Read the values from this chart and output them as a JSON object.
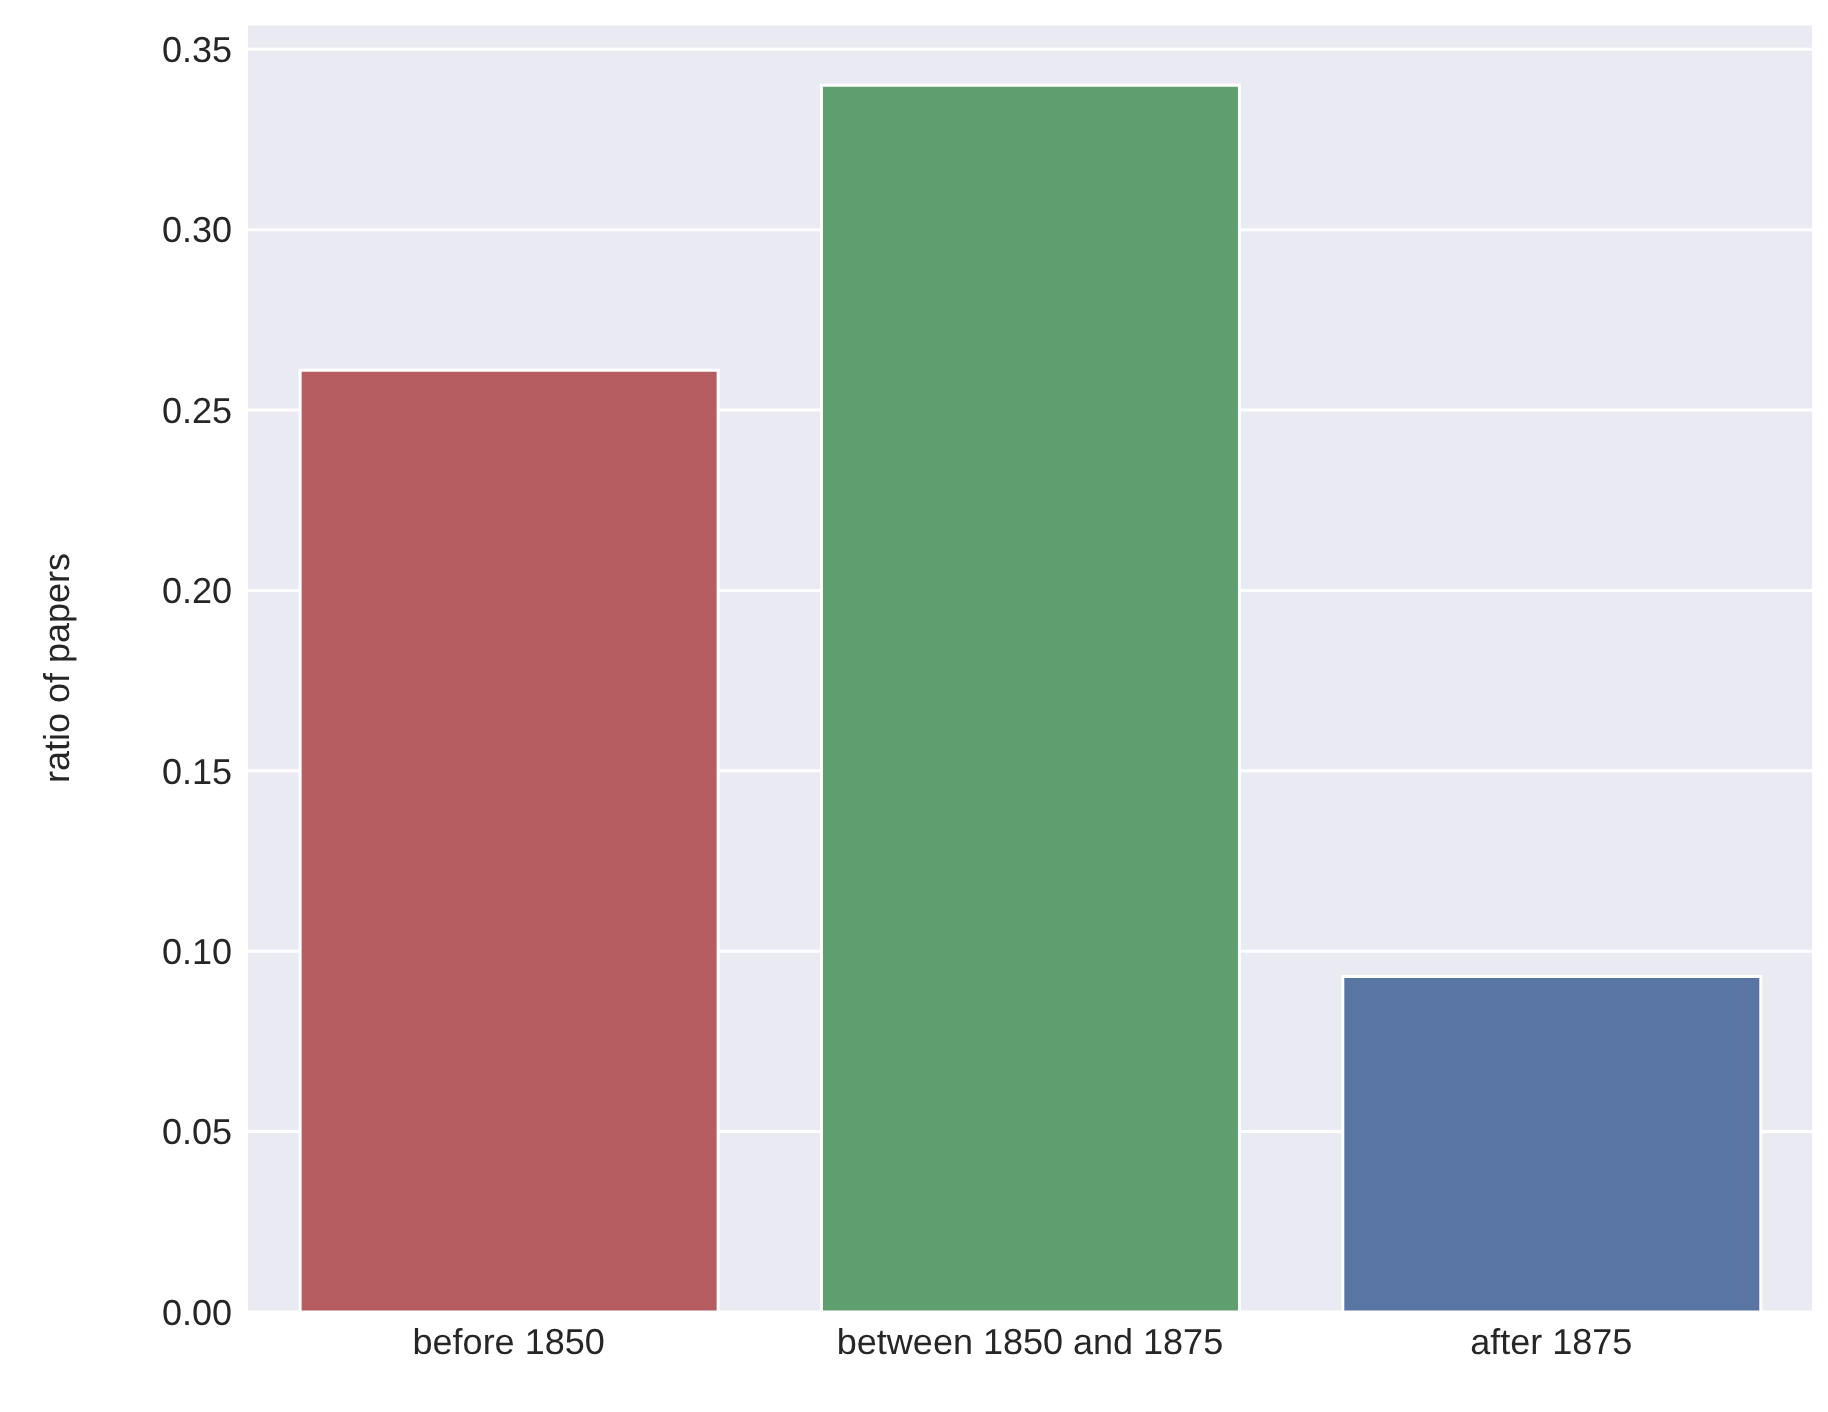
{
  "chart_data": {
    "type": "bar",
    "ylabel": "ratio of papers",
    "categories": [
      "before 1850",
      "between 1850 and 1875",
      "after 1875"
    ],
    "values": [
      0.261,
      0.34,
      0.093
    ],
    "colors": [
      "#b55d60",
      "#5f9e6e",
      "#5975a4"
    ],
    "ylim": [
      0,
      0.357
    ],
    "yticks": [
      {
        "value": 0,
        "label": "0.00"
      },
      {
        "value": 0.05,
        "label": "0.05"
      },
      {
        "value": 0.1,
        "label": "0.10"
      },
      {
        "value": 0.15,
        "label": "0.15"
      },
      {
        "value": 0.2,
        "label": "0.20"
      },
      {
        "value": 0.25,
        "label": "0.25"
      },
      {
        "value": 0.3,
        "label": "0.30"
      },
      {
        "value": 0.35,
        "label": "0.35"
      }
    ],
    "grid": "y"
  }
}
